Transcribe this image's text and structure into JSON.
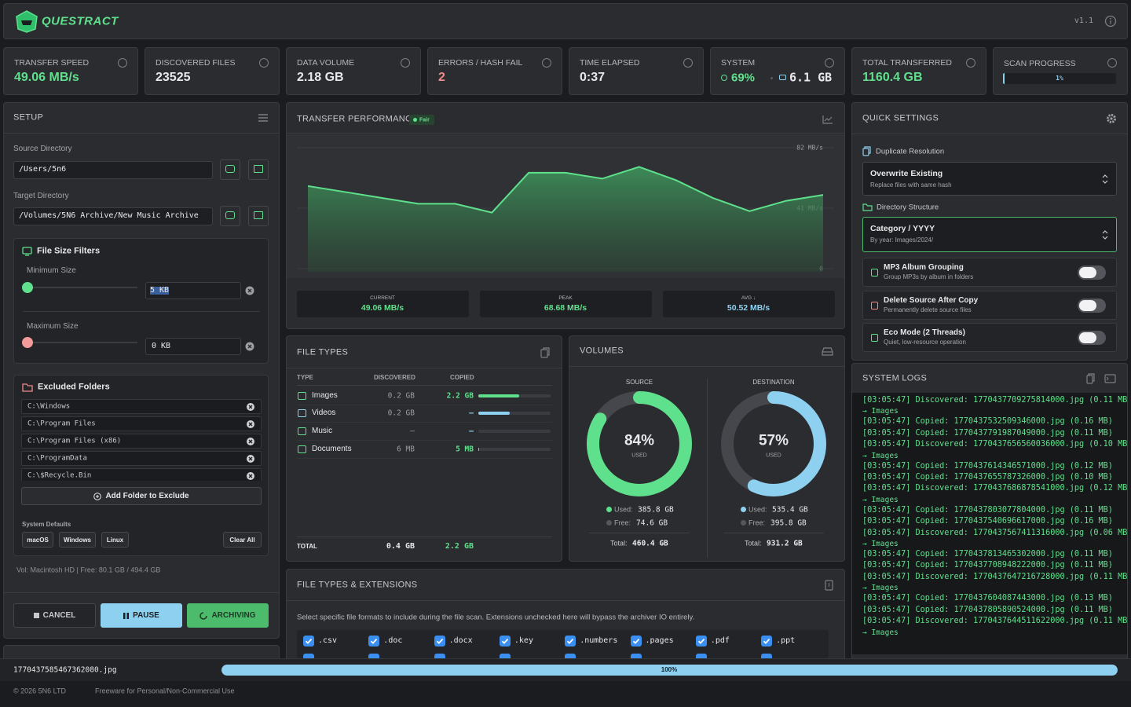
{
  "header": {
    "brand": "QUESTRACT",
    "version": "v1.1"
  },
  "stats": [
    {
      "label": "TRANSFER SPEED",
      "value": "49.06 MB/s"
    },
    {
      "label": "DISCOVERED FILES",
      "value": "23525"
    },
    {
      "label": "DATA VOLUME",
      "value": "2.18 GB"
    },
    {
      "label": "ERRORS / HASH FAIL",
      "value": "2"
    },
    {
      "label": "TIME ELAPSED",
      "value": "0:37"
    },
    {
      "label": "SYSTEM",
      "value": "69%",
      "value2": "6.1 GB"
    },
    {
      "label": "TOTAL TRANSFERRED",
      "value": "1160.4 GB"
    },
    {
      "label": "SCAN PROGRESS",
      "value": "1%"
    }
  ],
  "setup": {
    "title": "SETUP",
    "source_label": "Source Directory",
    "source": "/Users/5n6",
    "target_label": "Target Directory",
    "target": "/Volumes/5N6 Archive/New Music Archive",
    "filters": {
      "title": "File Size Filters",
      "min_label": "Minimum Size",
      "min": "5 KB",
      "max_label": "Maximum Size",
      "max": "0 KB"
    },
    "excluded": {
      "title": "Excluded Folders",
      "folders": [
        "C:\\Windows",
        "C:\\Program Files",
        "C:\\Program Files (x86)",
        "C:\\ProgramData",
        "C:\\$Recycle.Bin"
      ],
      "add": "Add Folder to Exclude",
      "defaults_label": "System Defaults",
      "presets": [
        "macOS",
        "Windows",
        "Linux"
      ],
      "clear": "Clear All"
    },
    "volume_info": "Vol: Macintosh HD | Free: 80.1 GB / 494.4 GB",
    "buttons": {
      "cancel": "CANCEL",
      "pause": "PAUSE",
      "archiving": "ARCHIVING"
    }
  },
  "performance": {
    "title": "TRANSFER PERFORMANCE",
    "badge": "Fair",
    "chart": {
      "type": "area",
      "ylim": [
        0,
        82
      ],
      "yticks": [
        {
          "value": 82,
          "label": "82 MB/s"
        },
        {
          "value": 41,
          "label": "41 MB/s"
        },
        0
      ],
      "values": [
        56,
        52,
        48,
        44,
        44,
        38,
        65,
        65,
        61,
        69,
        60,
        48,
        39,
        46,
        50
      ]
    },
    "metrics": [
      {
        "label": "CURRENT",
        "value": "49.06 MB/s"
      },
      {
        "label": "PEAK",
        "value": "68.68 MB/s"
      },
      {
        "label": "AVG ↓",
        "value": "50.52 MB/s"
      }
    ]
  },
  "file_types": {
    "title": "FILE TYPES",
    "headers": [
      "TYPE",
      "DISCOVERED",
      "COPIED"
    ],
    "rows": [
      [
        "Images",
        "0.2 GB",
        "2.2 GB"
      ],
      [
        "Videos",
        "0.2 GB",
        "–"
      ],
      [
        "Music",
        "–",
        "–"
      ],
      [
        "Documents",
        "6 MB",
        "5 MB"
      ]
    ],
    "total": [
      "TOTAL",
      "0.4 GB",
      "2.2 GB"
    ]
  },
  "volumes": {
    "title": "VOLUMES",
    "source": {
      "label": "SOURCE",
      "percent": "84%",
      "used_caption": "USED",
      "used_label": "Used:",
      "used": "385.8 GB",
      "free_label": "Free:",
      "free": "74.6 GB",
      "total_label": "Total:",
      "total": "460.4 GB"
    },
    "destination": {
      "label": "DESTINATION",
      "percent": "57%",
      "used_caption": "USED",
      "used_label": "Used:",
      "used": "535.4 GB",
      "free_label": "Free:",
      "free": "395.8 GB",
      "total_label": "Total:",
      "total": "931.2 GB"
    }
  },
  "quick_settings": {
    "title": "QUICK SETTINGS",
    "duplicate_label": "Duplicate Resolution",
    "duplicate": {
      "title": "Overwrite Existing",
      "desc": "Replace files with same hash"
    },
    "structure_label": "Directory Structure",
    "structure": {
      "title": "Category / YYYY",
      "desc": "By year: Images/2024/"
    },
    "toggles": [
      {
        "title": "MP3 Album Grouping",
        "desc": "Group MP3s by album in folders"
      },
      {
        "title": "Delete Source After Copy",
        "desc": "Permanently delete source files"
      },
      {
        "title": "Eco Mode (2 Threads)",
        "desc": "Quiet, low-resource operation"
      }
    ]
  },
  "extensions": {
    "title": "FILE TYPES & EXTENSIONS",
    "description": "Select specific file formats to include during the file scan. Extensions unchecked here will bypass the archiver IO entirely.",
    "items": [
      ".csv",
      ".doc",
      ".docx",
      ".key",
      ".numbers",
      ".pages",
      ".pdf",
      ".ppt"
    ]
  },
  "logs": {
    "title": "SYSTEM LOGS",
    "entries": [
      {
        "text": "[03:05:47] Discovered: 1770437709275814000.jpg (0.11 MB)",
        "sub": "→ Images"
      },
      {
        "text": "[03:05:47] Copied: 1770437532509346000.jpg (0.16 MB)"
      },
      {
        "text": "[03:05:47] Copied: 1770437791987049000.jpg (0.11 MB)"
      },
      {
        "text": "[03:05:47] Discovered: 1770437656560036000.jpg (0.10 MB)",
        "sub": "→ Images"
      },
      {
        "text": "[03:05:47] Copied: 1770437614346571000.jpg (0.12 MB)"
      },
      {
        "text": "[03:05:47] Copied: 1770437655787326000.jpg (0.10 MB)"
      },
      {
        "text": "[03:05:47] Discovered: 1770437686878541000.jpg (0.12 MB)",
        "sub": "→ Images"
      },
      {
        "text": "[03:05:47] Copied: 1770437803077804000.jpg (0.11 MB)"
      },
      {
        "text": "[03:05:47] Copied: 1770437540696617000.jpg (0.16 MB)"
      },
      {
        "text": "[03:05:47] Discovered: 1770437567411316000.jpg (0.06 MB)",
        "sub": "→ Images"
      },
      {
        "text": "[03:05:47] Copied: 1770437813465302000.jpg (0.11 MB)"
      },
      {
        "text": "[03:05:47] Copied: 1770437708948222000.jpg (0.11 MB)"
      },
      {
        "text": "[03:05:47] Discovered: 1770437647216728000.jpg (0.11 MB)",
        "sub": "→ Images"
      },
      {
        "text": "[03:05:47] Copied: 1770437604087443000.jpg (0.13 MB)"
      },
      {
        "text": "[03:05:47] Copied: 1770437805890524000.jpg (0.11 MB)"
      },
      {
        "text": "[03:05:47] Discovered: 1770437644511622000.jpg (0.11 MB)",
        "sub": "→ Images"
      }
    ]
  },
  "footer": {
    "current_file": "1770437585467362080.jpg",
    "progress": "100%",
    "copyright": "© 2026 5N6 LTD",
    "license": "Freeware for Personal/Non-Commercial Use"
  }
}
